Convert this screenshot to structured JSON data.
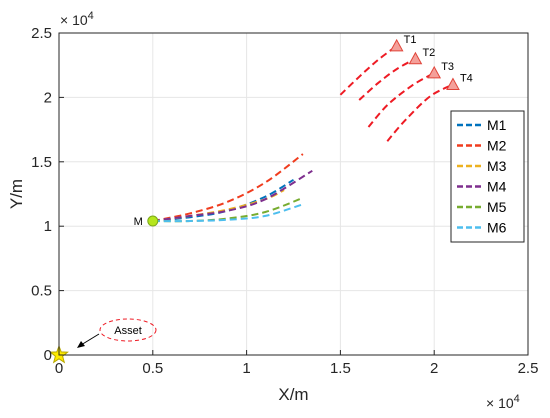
{
  "chart_data": {
    "type": "line",
    "title": "",
    "xlabel": "X/m",
    "ylabel": "Y/m",
    "x_multiplier_label": "× 10^4",
    "y_multiplier_label": "× 10^4",
    "xlim": [
      0,
      25000
    ],
    "ylim": [
      0,
      25000
    ],
    "xticks": [
      0,
      5000,
      10000,
      15000,
      20000,
      25000
    ],
    "xtick_labels": [
      "0",
      "0.5",
      "1",
      "1.5",
      "2",
      "2.5"
    ],
    "yticks": [
      0,
      5000,
      10000,
      15000,
      20000,
      25000
    ],
    "ytick_labels": [
      "0",
      "0.5",
      "1",
      "1.5",
      "2",
      "2.5"
    ],
    "grid": true,
    "legend_position": "right",
    "series": [
      {
        "name": "M1",
        "color": "#0072BD",
        "style": "dashed",
        "x": [
          5000,
          7000,
          9000,
          11000,
          12500
        ],
        "y": [
          10400,
          10700,
          11200,
          12300,
          13600
        ]
      },
      {
        "name": "M2",
        "color": "#F03C1E",
        "style": "dashed",
        "x": [
          5000,
          7000,
          9000,
          11000,
          13000
        ],
        "y": [
          10400,
          11000,
          11900,
          13400,
          15600
        ]
      },
      {
        "name": "M3",
        "color": "#EDB120",
        "style": "dashed",
        "x": [
          5000,
          7000,
          9000,
          11000,
          12000
        ],
        "y": [
          10400,
          10800,
          11300,
          12100,
          12800
        ]
      },
      {
        "name": "M4",
        "color": "#7E2F8E",
        "style": "dashed",
        "x": [
          5000,
          7000,
          9000,
          11000,
          13500
        ],
        "y": [
          10400,
          10800,
          11200,
          12100,
          14300
        ]
      },
      {
        "name": "M5",
        "color": "#77AC30",
        "style": "dashed",
        "x": [
          5000,
          7000,
          9000,
          11000,
          13000
        ],
        "y": [
          10400,
          10400,
          10600,
          11100,
          12200
        ]
      },
      {
        "name": "M6",
        "color": "#4DBEEE",
        "style": "dashed",
        "x": [
          5000,
          7000,
          9000,
          11000,
          13000
        ],
        "y": [
          10400,
          10400,
          10500,
          10800,
          11700
        ]
      }
    ],
    "target_tracks": [
      {
        "name": "T1",
        "color": "#EE1B24",
        "x": [
          15000,
          16000,
          17000,
          18000
        ],
        "y": [
          20200,
          21600,
          22900,
          24000
        ]
      },
      {
        "name": "T2",
        "color": "#EE1B24",
        "x": [
          16000,
          17000,
          18000,
          19000
        ],
        "y": [
          19800,
          21100,
          22200,
          23000
        ]
      },
      {
        "name": "T3",
        "color": "#EE1B24",
        "x": [
          16500,
          17500,
          18800,
          20000
        ],
        "y": [
          17700,
          19400,
          20900,
          21900
        ]
      },
      {
        "name": "T4",
        "color": "#EE1B24",
        "x": [
          17500,
          18500,
          19800,
          21000
        ],
        "y": [
          16600,
          18300,
          20100,
          21000
        ]
      }
    ],
    "missile_start": {
      "label": "M",
      "x": 5000,
      "y": 10400,
      "color": "#B5E61D"
    },
    "asset": {
      "label": "Asset",
      "x": 0,
      "y": 0,
      "star_color": "#FFEB00",
      "ellipse_color": "#EE1B24"
    }
  }
}
